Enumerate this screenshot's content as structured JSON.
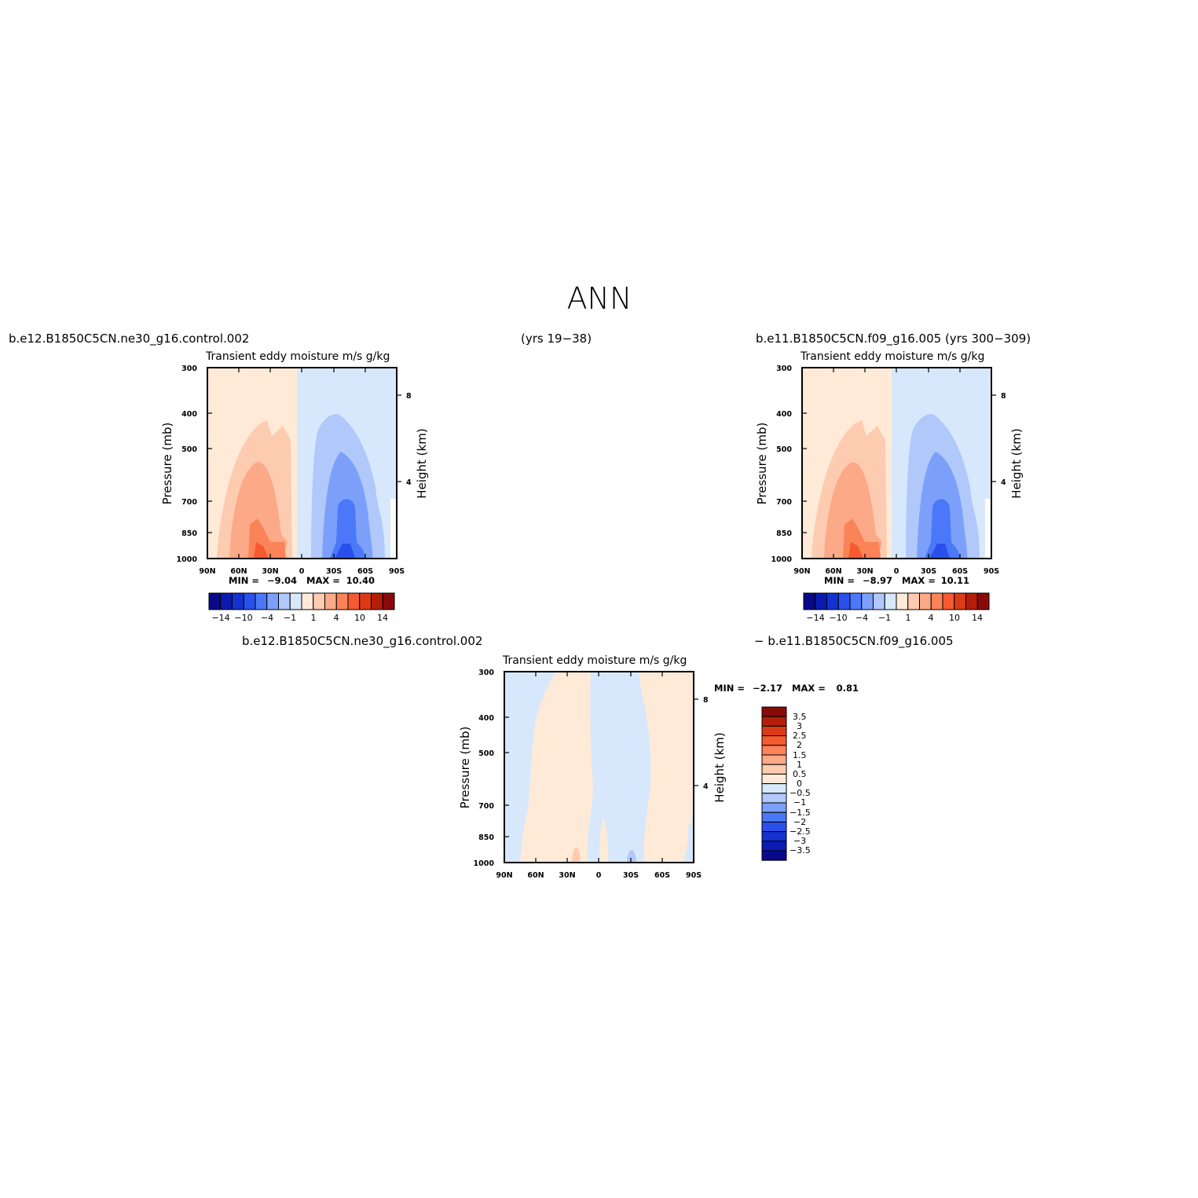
{
  "suptitle": "ANN",
  "headers": {
    "case1": "b.e12.B1850C5CN.ne30_g16.control.002",
    "years1": "(yrs 19−38)",
    "case2_with_years": "b.e11.B1850C5CN.f09_g16.005 (yrs 300−309)",
    "diff_case1": "b.e12.B1850C5CN.ne30_g16.control.002",
    "diff_case2": "− b.e11.B1850C5CN.f09_g16.005"
  },
  "colors": {
    "full_levels": [
      "#08088a",
      "#0a1bb0",
      "#1432d2",
      "#2a50ec",
      "#4a78f8",
      "#7ca0fa",
      "#b0c8fa",
      "#d8e8fc",
      "#ffead8",
      "#fdcbb0",
      "#fca988",
      "#fb8358",
      "#f55a30",
      "#dc3a14",
      "#b41e08",
      "#8a0a0a"
    ],
    "diff_levels": [
      "#08088a",
      "#0a1bb0",
      "#1432d2",
      "#2a50ec",
      "#4a78f8",
      "#7ca0fa",
      "#b0c8fa",
      "#d8e8fc",
      "#ffead8",
      "#fdcbb0",
      "#fca988",
      "#fb8358",
      "#f55a30",
      "#dc3a14",
      "#b41e08",
      "#8a0a0a"
    ]
  },
  "chart_data": [
    {
      "type": "contour",
      "panel": "case1",
      "title": "Transient eddy moisture m/s g/kg",
      "ylabel": "Pressure (mb)",
      "ylabel_right": "Height (km)",
      "x_ticks": [
        "90N",
        "60N",
        "30N",
        "0",
        "30S",
        "60S",
        "90S"
      ],
      "y_ticks": [
        300,
        400,
        500,
        700,
        850,
        1000
      ],
      "y_right_ticks": [
        8,
        4
      ],
      "ylim": [
        1000,
        300
      ],
      "min_label": "MIN =",
      "min_value": "−9.04",
      "max_label": "MAX =",
      "max_value": "10.40",
      "colorbar_labels": [
        "−14",
        "−10",
        "−4",
        "−1",
        "1",
        "4",
        "10",
        "14"
      ]
    },
    {
      "type": "contour",
      "panel": "case2",
      "title": "Transient eddy moisture m/s g/kg",
      "ylabel": "Pressure (mb)",
      "ylabel_right": "Height (km)",
      "x_ticks": [
        "90N",
        "60N",
        "30N",
        "0",
        "30S",
        "60S",
        "90S"
      ],
      "y_ticks": [
        300,
        400,
        500,
        700,
        850,
        1000
      ],
      "y_right_ticks": [
        8,
        4
      ],
      "ylim": [
        1000,
        300
      ],
      "min_label": "MIN =",
      "min_value": "−8.97",
      "max_label": "MAX =",
      "max_value": "10.11",
      "colorbar_labels": [
        "−14",
        "−10",
        "−4",
        "−1",
        "1",
        "4",
        "10",
        "14"
      ]
    },
    {
      "type": "contour",
      "panel": "difference",
      "title": "Transient eddy moisture m/s g/kg",
      "ylabel": "Pressure (mb)",
      "ylabel_right": "Height (km)",
      "x_ticks": [
        "90N",
        "60N",
        "30N",
        "0",
        "30S",
        "60S",
        "90S"
      ],
      "y_ticks": [
        300,
        400,
        500,
        700,
        850,
        1000
      ],
      "y_right_ticks": [
        8,
        4
      ],
      "ylim": [
        1000,
        300
      ],
      "min_label": "MIN =",
      "min_value": "−2.17",
      "max_label": "MAX =",
      "max_value": "0.81",
      "colorbar_labels": [
        "3.5",
        "3",
        "2.5",
        "2",
        "1.5",
        "1",
        "0.5",
        "0",
        "−0.5",
        "−1",
        "−1.5",
        "−2",
        "−2.5",
        "−3",
        "−3.5"
      ]
    }
  ]
}
